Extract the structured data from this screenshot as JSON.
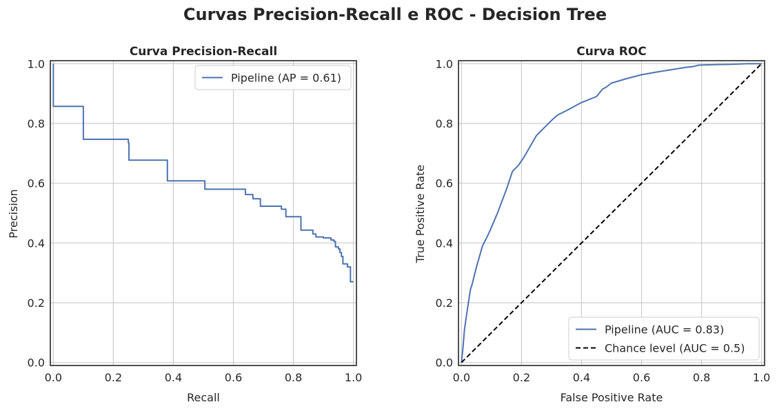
{
  "suptitle": "Curvas Precision-Recall e ROC - Decision Tree",
  "colors": {
    "series": "#4c72b0",
    "chance": "#000000",
    "grid": "#cccccc",
    "text": "#262626"
  },
  "chart_data": [
    {
      "type": "line",
      "title": "Curva Precision-Recall",
      "xlabel": "Recall",
      "ylabel": "Precision",
      "xlim": [
        0.0,
        1.0
      ],
      "ylim": [
        0.0,
        1.0
      ],
      "xticks": [
        "0.0",
        "0.2",
        "0.4",
        "0.6",
        "0.8",
        "1.0"
      ],
      "yticks": [
        "0.0",
        "0.2",
        "0.4",
        "0.6",
        "0.8",
        "1.0"
      ],
      "grid": true,
      "legend_position": "top-right",
      "series": [
        {
          "name": "Pipeline (AP = 0.61)",
          "style": "steps-post",
          "color": "#4c72b0",
          "x": [
            0.0,
            0.0,
            0.1,
            0.25,
            0.252,
            0.38,
            0.505,
            0.64,
            0.665,
            0.69,
            0.76,
            0.775,
            0.825,
            0.865,
            0.875,
            0.9,
            0.925,
            0.935,
            0.94,
            0.95,
            0.955,
            0.96,
            0.965,
            0.98,
            0.99,
            1.0
          ],
          "y": [
            1.0,
            0.857,
            0.747,
            0.735,
            0.677,
            0.608,
            0.58,
            0.562,
            0.548,
            0.523,
            0.513,
            0.488,
            0.443,
            0.43,
            0.42,
            0.417,
            0.41,
            0.405,
            0.387,
            0.38,
            0.368,
            0.355,
            0.33,
            0.32,
            0.27,
            0.27
          ]
        }
      ]
    },
    {
      "type": "line",
      "title": "Curva ROC",
      "xlabel": "False Positive Rate",
      "ylabel": "True Positive Rate",
      "xlim": [
        0.0,
        1.0
      ],
      "ylim": [
        0.0,
        1.0
      ],
      "xticks": [
        "0.0",
        "0.2",
        "0.4",
        "0.6",
        "0.8",
        "1.0"
      ],
      "yticks": [
        "0.0",
        "0.2",
        "0.4",
        "0.6",
        "0.8",
        "1.0"
      ],
      "grid": true,
      "legend_position": "lower-right",
      "series": [
        {
          "name": "Pipeline (AUC = 0.83)",
          "style": "solid",
          "color": "#4c72b0",
          "x": [
            0.0,
            0.005,
            0.01,
            0.02,
            0.03,
            0.035,
            0.05,
            0.07,
            0.09,
            0.12,
            0.15,
            0.17,
            0.19,
            0.21,
            0.23,
            0.25,
            0.26,
            0.28,
            0.3,
            0.32,
            0.35,
            0.4,
            0.45,
            0.47,
            0.48,
            0.5,
            0.55,
            0.6,
            0.65,
            0.7,
            0.75,
            0.77,
            0.79,
            0.85,
            0.9,
            0.95,
            1.0
          ],
          "y": [
            0.0,
            0.05,
            0.11,
            0.18,
            0.245,
            0.26,
            0.32,
            0.39,
            0.43,
            0.5,
            0.58,
            0.64,
            0.66,
            0.69,
            0.725,
            0.76,
            0.77,
            0.79,
            0.81,
            0.828,
            0.843,
            0.87,
            0.89,
            0.915,
            0.92,
            0.935,
            0.95,
            0.963,
            0.972,
            0.98,
            0.988,
            0.99,
            0.995,
            0.997,
            0.998,
            1.0,
            1.0
          ]
        },
        {
          "name": "Chance level (AUC = 0.5)",
          "style": "dashed",
          "color": "#000000",
          "x": [
            0.0,
            1.0
          ],
          "y": [
            0.0,
            1.0
          ]
        }
      ]
    }
  ]
}
